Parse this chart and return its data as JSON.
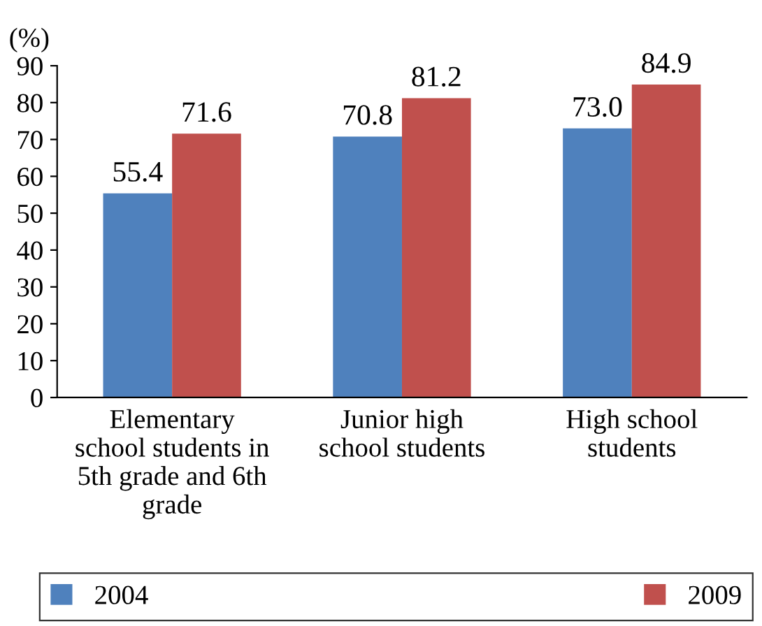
{
  "chart_data": {
    "type": "bar",
    "ylabel": "(%)",
    "categories": [
      "Elementary\nschool students in\n5th grade and 6th\ngrade",
      "Junior high\nschool students",
      "High school\nstudents"
    ],
    "series": [
      {
        "name": "2004",
        "color": "#4f81bd",
        "values": [
          55.4,
          70.8,
          73.0
        ],
        "value_labels": [
          "55.4",
          "70.8",
          "73.0"
        ]
      },
      {
        "name": "2009",
        "color": "#c0504d",
        "values": [
          71.6,
          81.2,
          84.9
        ],
        "value_labels": [
          "71.6",
          "81.2",
          "84.9"
        ]
      }
    ],
    "ylim": [
      0,
      90
    ],
    "yticks": [
      0,
      10,
      20,
      30,
      40,
      50,
      60,
      70,
      80,
      90
    ],
    "grid": false,
    "legend": "bottom"
  }
}
